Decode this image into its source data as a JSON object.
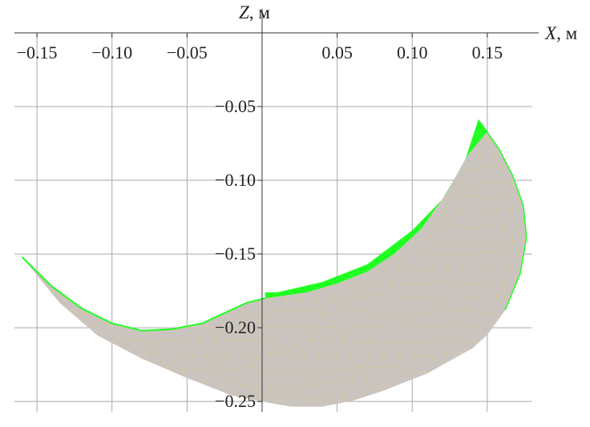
{
  "chart_data": {
    "type": "area",
    "xlabel_var": "X",
    "xlabel_unit": ", м",
    "ylabel_var": "Z",
    "ylabel_unit": ", м",
    "xlim": [
      -0.165,
      0.18
    ],
    "ylim": [
      -0.257,
      0.0
    ],
    "x_ticks": [
      -0.15,
      -0.1,
      -0.05,
      0.05,
      0.1,
      0.15
    ],
    "x_tick_labels": [
      "−0.15",
      "−0.10",
      "−0.05",
      "0.05",
      "0.10",
      "0.15"
    ],
    "y_ticks": [
      -0.05,
      -0.1,
      -0.15,
      -0.2,
      -0.25
    ],
    "y_tick_labels": [
      "−0.05",
      "−0.10",
      "−0.15",
      "−0.20",
      "−0.25"
    ],
    "grid": true,
    "colors": {
      "body_fill": "#c9c4bf",
      "mesh": "#e3c99a",
      "highlight": "#22ff22",
      "grid": "#a8a8a8",
      "axis": "#333333"
    },
    "series": [
      {
        "id": "body",
        "outer": [
          [
            -0.16,
            -0.152
          ],
          [
            -0.135,
            -0.183
          ],
          [
            -0.11,
            -0.205
          ],
          [
            -0.08,
            -0.221
          ],
          [
            -0.05,
            -0.234
          ],
          [
            -0.02,
            -0.246
          ],
          [
            0.01,
            -0.252
          ],
          [
            0.02,
            -0.2535
          ],
          [
            0.04,
            -0.2535
          ],
          [
            0.06,
            -0.2495
          ],
          [
            0.08,
            -0.243
          ],
          [
            0.11,
            -0.231
          ],
          [
            0.14,
            -0.214
          ],
          [
            0.15,
            -0.205
          ],
          [
            0.162,
            -0.188
          ],
          [
            0.172,
            -0.163
          ],
          [
            0.176,
            -0.14
          ],
          [
            0.176,
            -0.137
          ],
          [
            0.174,
            -0.117
          ],
          [
            0.167,
            -0.097
          ],
          [
            0.158,
            -0.079
          ],
          [
            0.147,
            -0.063
          ],
          [
            0.144,
            -0.059
          ]
        ],
        "inner": [
          [
            0.137,
            -0.083
          ],
          [
            0.122,
            -0.11
          ],
          [
            0.106,
            -0.133
          ],
          [
            0.088,
            -0.15
          ],
          [
            0.07,
            -0.162
          ],
          [
            0.05,
            -0.17
          ],
          [
            0.03,
            -0.176
          ],
          [
            0.01,
            -0.179
          ],
          [
            0.002,
            -0.18
          ],
          [
            -0.01,
            -0.183
          ],
          [
            -0.025,
            -0.19
          ],
          [
            -0.04,
            -0.197
          ],
          [
            -0.06,
            -0.201
          ],
          [
            -0.08,
            -0.202
          ],
          [
            -0.1,
            -0.197
          ],
          [
            -0.12,
            -0.187
          ],
          [
            -0.14,
            -0.172
          ],
          [
            -0.16,
            -0.152
          ]
        ]
      },
      {
        "id": "contact_band",
        "outer": [
          [
            0.01,
            -0.176
          ],
          [
            0.04,
            -0.169
          ],
          [
            0.07,
            -0.157
          ],
          [
            0.1,
            -0.134
          ],
          [
            0.12,
            -0.113
          ],
          [
            0.135,
            -0.087
          ],
          [
            0.144,
            -0.059
          ]
        ],
        "inner": [
          [
            0.15,
            -0.067
          ],
          [
            0.137,
            -0.083
          ],
          [
            0.122,
            -0.11
          ],
          [
            0.106,
            -0.133
          ],
          [
            0.088,
            -0.15
          ],
          [
            0.07,
            -0.162
          ],
          [
            0.05,
            -0.17
          ],
          [
            0.03,
            -0.176
          ],
          [
            0.01,
            -0.179
          ],
          [
            0.002,
            -0.18
          ]
        ],
        "join": [
          [
            0.002,
            -0.176
          ]
        ]
      }
    ]
  }
}
